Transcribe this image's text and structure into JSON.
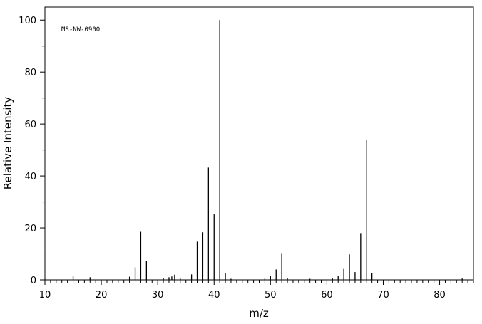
{
  "chart_data": {
    "type": "bar",
    "subtype": "mass-spectrum-stick",
    "title": "",
    "annotation": "MS-NW-0900",
    "xlabel": "m/z",
    "ylabel": "Relative Intensity",
    "xlim": [
      10,
      86
    ],
    "ylim": [
      0,
      105
    ],
    "xticks": [
      10,
      20,
      30,
      40,
      50,
      60,
      70,
      80
    ],
    "yticks": [
      0,
      20,
      40,
      60,
      80,
      100
    ],
    "grid": false,
    "legend": "none",
    "points": [
      {
        "mz": 15,
        "intensity": 1.5
      },
      {
        "mz": 18,
        "intensity": 1.0
      },
      {
        "mz": 25,
        "intensity": 1.2
      },
      {
        "mz": 26,
        "intensity": 4.8
      },
      {
        "mz": 27,
        "intensity": 18.5
      },
      {
        "mz": 28,
        "intensity": 7.3
      },
      {
        "mz": 31,
        "intensity": 0.6
      },
      {
        "mz": 32,
        "intensity": 1.0
      },
      {
        "mz": 32.5,
        "intensity": 1.3
      },
      {
        "mz": 33,
        "intensity": 2.0
      },
      {
        "mz": 34,
        "intensity": 0.5
      },
      {
        "mz": 36,
        "intensity": 2.1
      },
      {
        "mz": 37,
        "intensity": 14.7
      },
      {
        "mz": 38,
        "intensity": 18.3
      },
      {
        "mz": 39,
        "intensity": 43.2
      },
      {
        "mz": 40,
        "intensity": 25.2
      },
      {
        "mz": 41,
        "intensity": 100
      },
      {
        "mz": 42,
        "intensity": 2.6
      },
      {
        "mz": 43,
        "intensity": 0.4
      },
      {
        "mz": 49,
        "intensity": 0.5
      },
      {
        "mz": 50,
        "intensity": 1.6
      },
      {
        "mz": 51,
        "intensity": 4.0
      },
      {
        "mz": 52,
        "intensity": 10.3
      },
      {
        "mz": 53,
        "intensity": 0.6
      },
      {
        "mz": 57,
        "intensity": 0.4
      },
      {
        "mz": 61,
        "intensity": 0.5
      },
      {
        "mz": 62,
        "intensity": 1.6
      },
      {
        "mz": 63,
        "intensity": 4.2
      },
      {
        "mz": 64,
        "intensity": 9.8
      },
      {
        "mz": 65,
        "intensity": 3.0
      },
      {
        "mz": 66,
        "intensity": 18.0
      },
      {
        "mz": 67,
        "intensity": 53.8
      },
      {
        "mz": 68,
        "intensity": 2.7
      },
      {
        "mz": 84,
        "intensity": 0.5
      }
    ],
    "style": {
      "line_color": "#000000",
      "background": "#ffffff"
    }
  }
}
